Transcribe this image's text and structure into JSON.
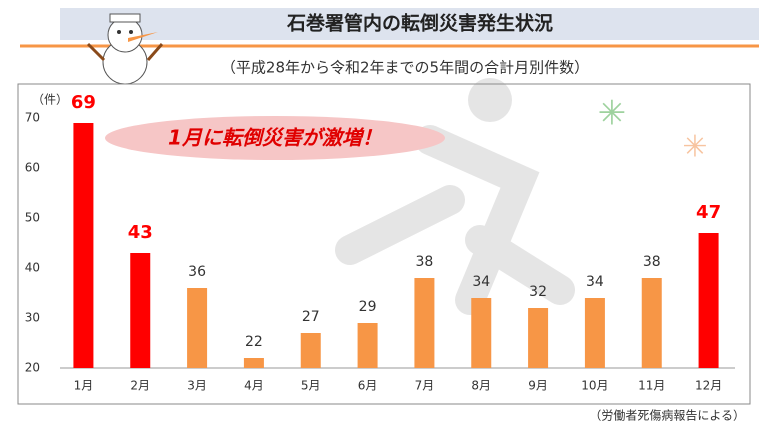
{
  "chart_data": {
    "type": "bar",
    "title": "石巻署管内の転倒災害発生状況",
    "subtitle": "（平成28年から令和2年までの5年間の合計月別件数）",
    "y_unit": "（件）",
    "annotation": "1月に転倒災害が激増！",
    "source": "（労働者死傷病報告による）",
    "categories": [
      "1月",
      "2月",
      "3月",
      "4月",
      "5月",
      "6月",
      "7月",
      "8月",
      "9月",
      "10月",
      "11月",
      "12月"
    ],
    "values": [
      69,
      43,
      36,
      22,
      27,
      29,
      38,
      34,
      32,
      34,
      38,
      47
    ],
    "colors": [
      "#ff0000",
      "#ff0000",
      "#f79646",
      "#f79646",
      "#f79646",
      "#f79646",
      "#f79646",
      "#f79646",
      "#f79646",
      "#f79646",
      "#f79646",
      "#ff0000"
    ],
    "label_colors": [
      "#ff0000",
      "#ff0000",
      "#333333",
      "#333333",
      "#333333",
      "#333333",
      "#333333",
      "#333333",
      "#333333",
      "#333333",
      "#333333",
      "#ff0000"
    ],
    "ylim": [
      20,
      70
    ],
    "yticks": [
      20,
      30,
      40,
      50,
      60,
      70
    ],
    "grid": false
  }
}
